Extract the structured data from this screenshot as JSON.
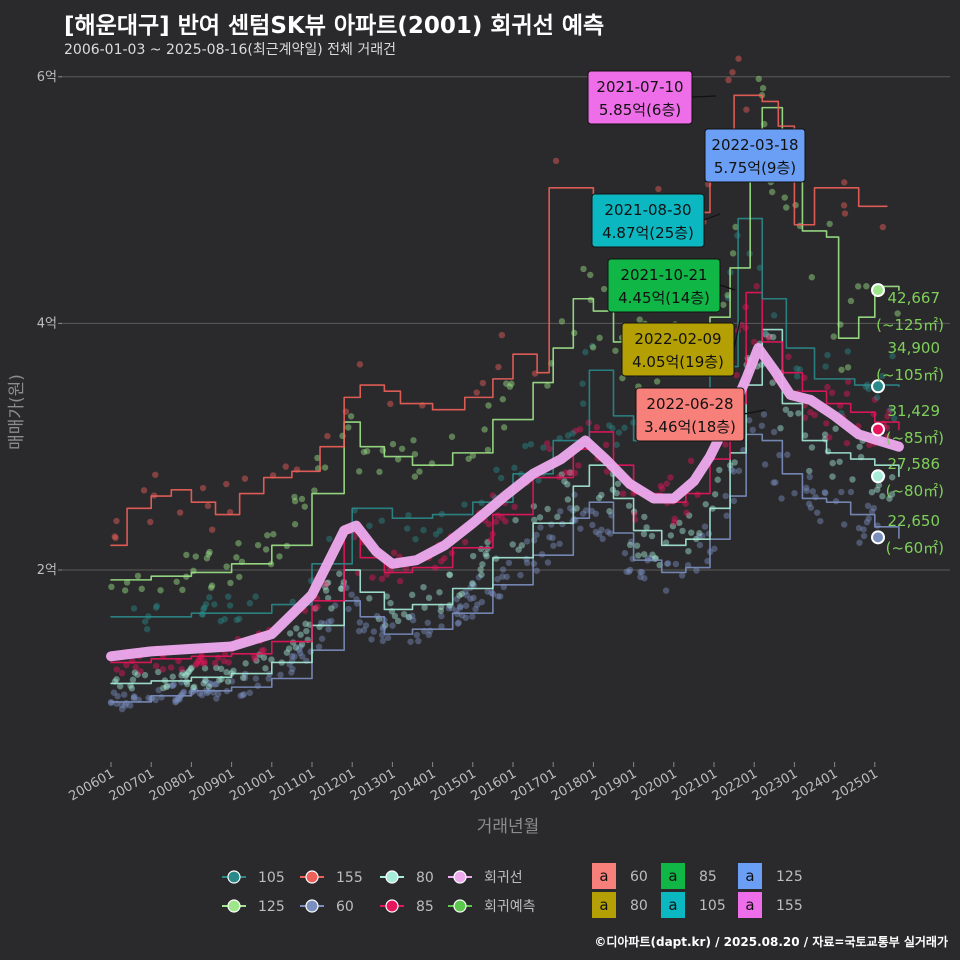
{
  "header": {
    "title": "[해운대구] 반여 센텀SK뷰 아파트(2001) 회귀선 예측",
    "subtitle": "2006-01-03 ~ 2025-08-16(최근계약일) 전체 거래건"
  },
  "credit": "©디아파트(dapt.kr) / 2025.08.20 / 자료=국토교통부 실거래가",
  "chart_data": {
    "type": "line",
    "ylabel": "매매가(원)",
    "xlabel": "거래년월",
    "ylim": [
      0.7,
      6.2
    ],
    "y_ticks": [
      {
        "v": 2,
        "label": "2억"
      },
      {
        "v": 4,
        "label": "4억"
      },
      {
        "v": 6,
        "label": "6억"
      }
    ],
    "x_range": [
      2006.0,
      2025.9
    ],
    "x_ticks": [
      "200601",
      "200701",
      "200801",
      "200901",
      "201001",
      "201101",
      "201201",
      "201301",
      "201401",
      "201501",
      "201601",
      "201701",
      "201801",
      "201901",
      "202001",
      "202101",
      "202201",
      "202301",
      "202401",
      "202501"
    ],
    "series": [
      {
        "name": "60",
        "color": "#7b8fbf",
        "values": [
          [
            2006.0,
            0.93
          ],
          [
            2007.0,
            0.98
          ],
          [
            2008.0,
            1.02
          ],
          [
            2009.0,
            1.05
          ],
          [
            2010.0,
            1.12
          ],
          [
            2011.0,
            1.35
          ],
          [
            2011.8,
            1.75
          ],
          [
            2012.2,
            1.62
          ],
          [
            2012.8,
            1.48
          ],
          [
            2013.5,
            1.52
          ],
          [
            2014.5,
            1.65
          ],
          [
            2015.5,
            1.88
          ],
          [
            2016.5,
            2.12
          ],
          [
            2017.5,
            2.42
          ],
          [
            2017.9,
            2.55
          ],
          [
            2018.5,
            2.3
          ],
          [
            2019.0,
            2.08
          ],
          [
            2019.7,
            1.98
          ],
          [
            2020.3,
            2.02
          ],
          [
            2020.9,
            2.25
          ],
          [
            2021.4,
            2.6
          ],
          [
            2021.8,
            3.1
          ],
          [
            2022.2,
            3.05
          ],
          [
            2022.7,
            2.78
          ],
          [
            2023.2,
            2.58
          ],
          [
            2023.8,
            2.55
          ],
          [
            2024.4,
            2.45
          ],
          [
            2025.0,
            2.35
          ],
          [
            2025.6,
            2.26
          ]
        ]
      },
      {
        "name": "80",
        "color": "#a6ecd9",
        "values": [
          [
            2006.0,
            1.08
          ],
          [
            2007.0,
            1.1
          ],
          [
            2008.0,
            1.13
          ],
          [
            2009.0,
            1.16
          ],
          [
            2010.0,
            1.25
          ],
          [
            2011.0,
            1.55
          ],
          [
            2011.8,
            2.0
          ],
          [
            2012.2,
            1.82
          ],
          [
            2012.8,
            1.68
          ],
          [
            2013.5,
            1.72
          ],
          [
            2014.5,
            1.85
          ],
          [
            2015.5,
            2.1
          ],
          [
            2016.5,
            2.38
          ],
          [
            2017.5,
            2.68
          ],
          [
            2017.9,
            2.85
          ],
          [
            2018.5,
            2.58
          ],
          [
            2019.0,
            2.32
          ],
          [
            2019.7,
            2.2
          ],
          [
            2020.3,
            2.25
          ],
          [
            2020.9,
            2.5
          ],
          [
            2021.4,
            2.95
          ],
          [
            2021.8,
            3.5
          ],
          [
            2022.2,
            3.95
          ],
          [
            2022.7,
            3.35
          ],
          [
            2023.2,
            3.05
          ],
          [
            2023.8,
            2.95
          ],
          [
            2024.4,
            2.9
          ],
          [
            2025.0,
            2.85
          ],
          [
            2025.6,
            2.76
          ]
        ]
      },
      {
        "name": "85",
        "color": "#e8145c",
        "values": [
          [
            2006.0,
            1.25
          ],
          [
            2007.0,
            1.28
          ],
          [
            2008.0,
            1.3
          ],
          [
            2009.0,
            1.32
          ],
          [
            2010.0,
            1.42
          ],
          [
            2011.0,
            1.75
          ],
          [
            2011.8,
            2.3
          ],
          [
            2012.2,
            2.1
          ],
          [
            2012.8,
            1.98
          ],
          [
            2013.5,
            2.02
          ],
          [
            2014.5,
            2.18
          ],
          [
            2015.5,
            2.45
          ],
          [
            2016.5,
            2.75
          ],
          [
            2017.5,
            2.98
          ],
          [
            2017.9,
            3.12
          ],
          [
            2018.5,
            2.85
          ],
          [
            2019.0,
            2.62
          ],
          [
            2019.7,
            2.55
          ],
          [
            2020.3,
            2.62
          ],
          [
            2020.9,
            2.9
          ],
          [
            2021.4,
            3.35
          ],
          [
            2021.8,
            4.25
          ],
          [
            2022.2,
            3.85
          ],
          [
            2022.7,
            3.6
          ],
          [
            2023.2,
            3.45
          ],
          [
            2023.8,
            3.35
          ],
          [
            2024.4,
            3.28
          ],
          [
            2025.0,
            3.2
          ],
          [
            2025.6,
            3.14
          ]
        ]
      },
      {
        "name": "105",
        "color": "#2a8a8a",
        "values": [
          [
            2006.0,
            1.62
          ],
          [
            2008.0,
            1.65
          ],
          [
            2010.0,
            1.72
          ],
          [
            2011.0,
            2.05
          ],
          [
            2012.0,
            2.5
          ],
          [
            2013.0,
            2.42
          ],
          [
            2014.0,
            2.45
          ],
          [
            2015.0,
            2.55
          ],
          [
            2016.0,
            2.78
          ],
          [
            2017.0,
            3.05
          ],
          [
            2017.9,
            3.62
          ],
          [
            2018.5,
            3.25
          ],
          [
            2019.0,
            3.05
          ],
          [
            2020.0,
            3.15
          ],
          [
            2020.9,
            3.65
          ],
          [
            2021.6,
            4.85
          ],
          [
            2022.2,
            4.2
          ],
          [
            2022.8,
            3.8
          ],
          [
            2023.5,
            3.55
          ],
          [
            2024.5,
            3.5
          ],
          [
            2025.6,
            3.49
          ]
        ]
      },
      {
        "name": "125",
        "color": "#9ee68a",
        "values": [
          [
            2006.0,
            1.92
          ],
          [
            2007.0,
            1.95
          ],
          [
            2008.0,
            1.98
          ],
          [
            2009.0,
            2.05
          ],
          [
            2010.0,
            2.2
          ],
          [
            2011.0,
            2.62
          ],
          [
            2011.8,
            3.2
          ],
          [
            2012.2,
            3.0
          ],
          [
            2012.8,
            2.92
          ],
          [
            2013.5,
            2.85
          ],
          [
            2014.5,
            2.95
          ],
          [
            2015.5,
            3.22
          ],
          [
            2016.5,
            3.52
          ],
          [
            2017.0,
            3.8
          ],
          [
            2017.5,
            4.2
          ],
          [
            2018.0,
            4.1
          ],
          [
            2018.5,
            3.85
          ],
          [
            2019.0,
            3.75
          ],
          [
            2019.7,
            3.7
          ],
          [
            2020.3,
            3.82
          ],
          [
            2020.9,
            4.05
          ],
          [
            2021.4,
            4.45
          ],
          [
            2021.9,
            5.3
          ],
          [
            2022.2,
            5.75
          ],
          [
            2022.7,
            5.2
          ],
          [
            2023.2,
            4.75
          ],
          [
            2023.8,
            4.7
          ],
          [
            2024.1,
            3.88
          ],
          [
            2024.6,
            4.05
          ],
          [
            2025.0,
            4.3
          ],
          [
            2025.6,
            4.27
          ]
        ]
      },
      {
        "name": "155",
        "color": "#f0605a",
        "values": [
          [
            2006.0,
            2.2
          ],
          [
            2006.4,
            2.5
          ],
          [
            2007.0,
            2.6
          ],
          [
            2007.5,
            2.65
          ],
          [
            2008.0,
            2.55
          ],
          [
            2008.6,
            2.45
          ],
          [
            2009.2,
            2.62
          ],
          [
            2009.8,
            2.75
          ],
          [
            2010.5,
            2.8
          ],
          [
            2011.2,
            3.0
          ],
          [
            2011.8,
            3.4
          ],
          [
            2012.2,
            3.5
          ],
          [
            2012.8,
            3.45
          ],
          [
            2013.2,
            3.35
          ],
          [
            2014.0,
            3.3
          ],
          [
            2014.8,
            3.4
          ],
          [
            2015.5,
            3.55
          ],
          [
            2016.0,
            3.75
          ],
          [
            2016.6,
            3.6
          ],
          [
            2016.9,
            5.1
          ],
          [
            2017.3,
            5.1
          ],
          [
            2018.0,
            4.8
          ],
          [
            2018.6,
            4.75
          ],
          [
            2019.3,
            4.8
          ],
          [
            2020.1,
            4.9
          ],
          [
            2020.9,
            5.3
          ],
          [
            2021.5,
            5.85
          ],
          [
            2022.2,
            5.8
          ],
          [
            2022.6,
            5.6
          ],
          [
            2023.0,
            4.8
          ],
          [
            2023.5,
            5.1
          ],
          [
            2024.0,
            5.1
          ],
          [
            2024.6,
            4.95
          ],
          [
            2025.3,
            4.95
          ]
        ]
      },
      {
        "name": "회귀선",
        "color": "#eeaaee",
        "values": [
          [
            2006.0,
            1.3
          ],
          [
            2007.0,
            1.34
          ],
          [
            2008.0,
            1.36
          ],
          [
            2009.0,
            1.38
          ],
          [
            2010.0,
            1.48
          ],
          [
            2011.0,
            1.8
          ],
          [
            2011.8,
            2.32
          ],
          [
            2012.1,
            2.36
          ],
          [
            2012.6,
            2.15
          ],
          [
            2013.0,
            2.05
          ],
          [
            2013.6,
            2.08
          ],
          [
            2014.3,
            2.2
          ],
          [
            2015.0,
            2.38
          ],
          [
            2015.8,
            2.6
          ],
          [
            2016.5,
            2.78
          ],
          [
            2017.2,
            2.9
          ],
          [
            2017.8,
            3.05
          ],
          [
            2018.3,
            2.9
          ],
          [
            2018.9,
            2.7
          ],
          [
            2019.5,
            2.58
          ],
          [
            2020.0,
            2.58
          ],
          [
            2020.5,
            2.72
          ],
          [
            2020.9,
            2.92
          ],
          [
            2021.4,
            3.25
          ],
          [
            2021.8,
            3.55
          ],
          [
            2022.1,
            3.8
          ],
          [
            2022.5,
            3.62
          ],
          [
            2022.9,
            3.42
          ],
          [
            2023.4,
            3.38
          ],
          [
            2024.0,
            3.25
          ],
          [
            2024.6,
            3.1
          ],
          [
            2025.1,
            3.05
          ],
          [
            2025.6,
            3.0
          ]
        ]
      }
    ],
    "annotations": [
      {
        "date": "2021-07-10",
        "price": "5.85억(6층)",
        "color": "#ee6de8"
      },
      {
        "date": "2022-03-18",
        "price": "5.75억(9층)",
        "color": "#6a9ff5"
      },
      {
        "date": "2021-08-30",
        "price": "4.87억(25층)",
        "color": "#0bb8c2"
      },
      {
        "date": "2021-10-21",
        "price": "4.45억(14층)",
        "color": "#10b646"
      },
      {
        "date": "2022-02-09",
        "price": "4.05억(19층)",
        "color": "#b4a004"
      },
      {
        "date": "2022-06-28",
        "price": "3.46억(18층)",
        "color": "#f8807a"
      }
    ],
    "end_labels": [
      {
        "value": "42,667",
        "area": "(~125㎡)"
      },
      {
        "value": "34,900",
        "area": "(~105㎡)"
      },
      {
        "value": "31,429",
        "area": "(~85㎡)"
      },
      {
        "value": "27,586",
        "area": "(~80㎡)"
      },
      {
        "value": "22,650",
        "area": "(~60㎡)"
      }
    ],
    "legend_lines": [
      {
        "label": "105",
        "color": "#2a8a8a"
      },
      {
        "label": "125",
        "color": "#9ee68a"
      },
      {
        "label": "155",
        "color": "#f0605a"
      },
      {
        "label": "60",
        "color": "#7b8fbf"
      },
      {
        "label": "80",
        "color": "#a6ecd9"
      },
      {
        "label": "85",
        "color": "#e8145c"
      },
      {
        "label": "회귀선",
        "color": "#eeaaee"
      },
      {
        "label": "회귀예측",
        "color": "#5ac84a"
      }
    ],
    "legend_boxes": [
      {
        "glyph": "a",
        "label": "60",
        "color": "#f8807a"
      },
      {
        "glyph": "a",
        "label": "80",
        "color": "#b4a004"
      },
      {
        "glyph": "a",
        "label": "85",
        "color": "#10b646"
      },
      {
        "glyph": "a",
        "label": "105",
        "color": "#0bb8c2"
      },
      {
        "glyph": "a",
        "label": "125",
        "color": "#6a9ff5"
      },
      {
        "glyph": "a",
        "label": "155",
        "color": "#ee6de8"
      }
    ]
  }
}
